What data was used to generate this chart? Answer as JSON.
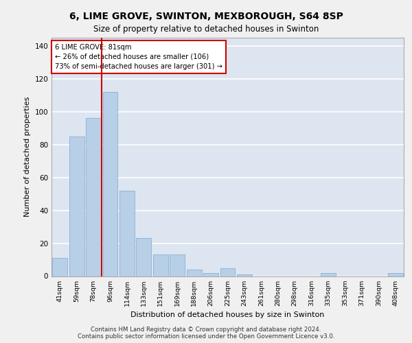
{
  "title1": "6, LIME GROVE, SWINTON, MEXBOROUGH, S64 8SP",
  "title2": "Size of property relative to detached houses in Swinton",
  "xlabel": "Distribution of detached houses by size in Swinton",
  "ylabel": "Number of detached properties",
  "categories": [
    "41sqm",
    "59sqm",
    "78sqm",
    "96sqm",
    "114sqm",
    "133sqm",
    "151sqm",
    "169sqm",
    "188sqm",
    "206sqm",
    "225sqm",
    "243sqm",
    "261sqm",
    "280sqm",
    "298sqm",
    "316sqm",
    "335sqm",
    "353sqm",
    "371sqm",
    "390sqm",
    "408sqm"
  ],
  "values": [
    11,
    85,
    96,
    112,
    52,
    23,
    13,
    13,
    4,
    2,
    5,
    1,
    0,
    0,
    0,
    0,
    2,
    0,
    0,
    0,
    2
  ],
  "bar_color": "#b8cfe8",
  "bar_edge_color": "#8ab0d0",
  "background_color": "#dde5f0",
  "grid_color": "#ffffff",
  "property_label": "6 LIME GROVE: 81sqm",
  "annotation_line1": "← 26% of detached houses are smaller (106)",
  "annotation_line2": "73% of semi-detached houses are larger (301) →",
  "vline_color": "#cc0000",
  "box_color": "#cc0000",
  "ylim": [
    0,
    145
  ],
  "yticks": [
    0,
    20,
    40,
    60,
    80,
    100,
    120,
    140
  ],
  "fig_bg": "#f0f0f0",
  "footer1": "Contains HM Land Registry data © Crown copyright and database right 2024.",
  "footer2": "Contains public sector information licensed under the Open Government Licence v3.0."
}
